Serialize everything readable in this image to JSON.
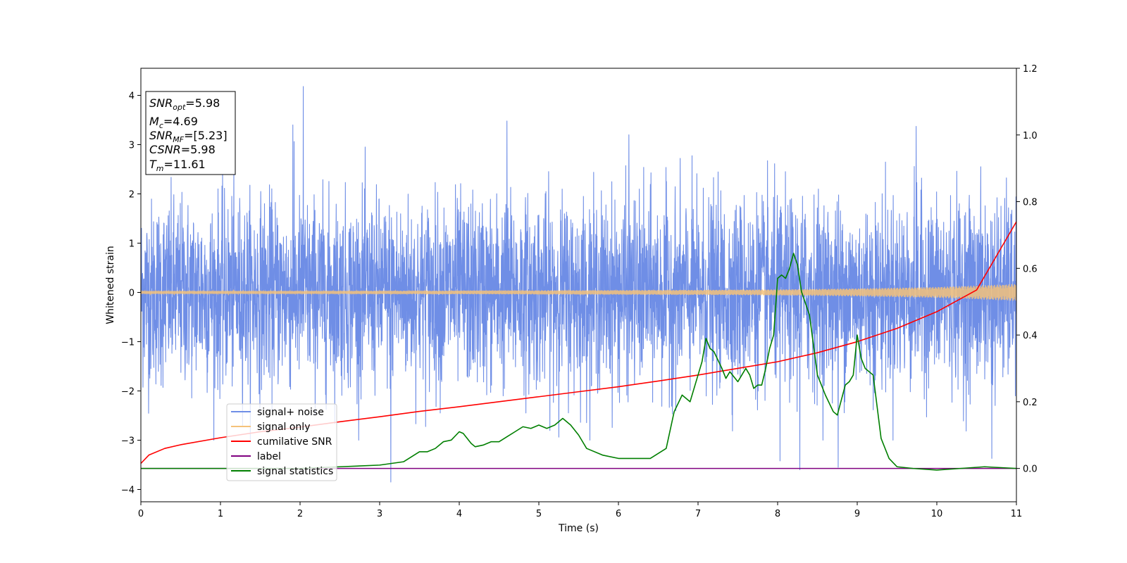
{
  "chart_data": {
    "type": "line",
    "xlabel": "Time (s)",
    "ylabel": "Whitened strain",
    "xlim": [
      0,
      11
    ],
    "ylim_left": [
      -4.25,
      4.55
    ],
    "ylim_right": [
      -0.1,
      1.2
    ],
    "x_ticks": [
      "0",
      "1",
      "2",
      "3",
      "4",
      "5",
      "6",
      "7",
      "8",
      "9",
      "10",
      "11"
    ],
    "y_ticks_left": [
      "−4",
      "−3",
      "−2",
      "−1",
      "0",
      "1",
      "2",
      "3",
      "4"
    ],
    "y_ticks_right": [
      "0.0",
      "0.2",
      "0.4",
      "0.6",
      "0.8",
      "1.0",
      "1.2"
    ],
    "grid": false,
    "legend_position": "lower-left",
    "legend": [
      {
        "label": "signal+ noise",
        "color": "#6f8ee6"
      },
      {
        "label": "signal only",
        "color": "#f5c27a"
      },
      {
        "label": "cumilative SNR",
        "color": "#ff0000"
      },
      {
        "label": "label",
        "color": "#800080"
      },
      {
        "label": "signal statistics",
        "color": "#007f00"
      }
    ],
    "info_box": {
      "position": "top-left",
      "lines": [
        {
          "base": "SNR",
          "sub": "opt",
          "value": "=5.98"
        },
        {
          "base": "M",
          "sub": "c",
          "value": "=4.69"
        },
        {
          "base": "SNR",
          "sub": "MF",
          "value": "=[5.23]"
        },
        {
          "base": "CSNR",
          "sub": "",
          "value": "=5.98"
        },
        {
          "base": "T",
          "sub": "m",
          "value": "=11.61"
        }
      ]
    },
    "series": [
      {
        "name": "signal+ noise",
        "axis": "left",
        "color": "#6f8ee6",
        "style": "dense noise",
        "typical_amplitude": 1.7,
        "extremes": [
          [
            2.04,
            4.18
          ],
          [
            1.91,
            3.4
          ],
          [
            4.6,
            3.48
          ],
          [
            9.74,
            3.37
          ],
          [
            6.13,
            3.2
          ],
          [
            3.14,
            -3.85
          ],
          [
            8.28,
            -3.6
          ],
          [
            8.76,
            -3.55
          ],
          [
            8.03,
            -3.42
          ],
          [
            10.69,
            -3.37
          ]
        ]
      },
      {
        "name": "signal only",
        "axis": "left",
        "color": "#f5c27a",
        "style": "chirp envelope",
        "envelope": [
          [
            0,
            0.03
          ],
          [
            2,
            0.03
          ],
          [
            4,
            0.035
          ],
          [
            6,
            0.045
          ],
          [
            7,
            0.05
          ],
          [
            8,
            0.06
          ],
          [
            9,
            0.08
          ],
          [
            10,
            0.11
          ],
          [
            11,
            0.17
          ]
        ]
      },
      {
        "name": "cumilative SNR",
        "axis": "right",
        "color": "#ff0000",
        "x": [
          0,
          0.1,
          0.3,
          0.5,
          1,
          1.5,
          2,
          2.5,
          3,
          3.5,
          4,
          4.5,
          5,
          5.5,
          6,
          6.5,
          7,
          7.5,
          8,
          8.5,
          9,
          9.5,
          10,
          10.5,
          11
        ],
        "y": [
          0.015,
          0.04,
          0.06,
          0.071,
          0.092,
          0.11,
          0.124,
          0.14,
          0.155,
          0.171,
          0.185,
          0.2,
          0.215,
          0.23,
          0.245,
          0.262,
          0.28,
          0.3,
          0.32,
          0.347,
          0.38,
          0.42,
          0.47,
          0.535,
          0.74
        ]
      },
      {
        "name": "label",
        "axis": "right",
        "color": "#800080",
        "x": [
          0,
          11
        ],
        "y": [
          0,
          0
        ]
      },
      {
        "name": "signal statistics",
        "axis": "right",
        "color": "#007f00",
        "x": [
          0,
          1,
          2,
          2.5,
          3,
          3.15,
          3.3,
          3.4,
          3.5,
          3.6,
          3.7,
          3.8,
          3.9,
          4.0,
          4.05,
          4.15,
          4.2,
          4.3,
          4.4,
          4.5,
          4.6,
          4.7,
          4.8,
          4.9,
          5.0,
          5.1,
          5.2,
          5.3,
          5.4,
          5.5,
          5.6,
          5.8,
          6.0,
          6.2,
          6.4,
          6.6,
          6.7,
          6.8,
          6.9,
          7.0,
          7.05,
          7.1,
          7.15,
          7.2,
          7.3,
          7.35,
          7.4,
          7.5,
          7.6,
          7.65,
          7.7,
          7.75,
          7.8,
          7.85,
          7.9,
          7.95,
          8.0,
          8.05,
          8.1,
          8.15,
          8.2,
          8.25,
          8.3,
          8.4,
          8.5,
          8.6,
          8.7,
          8.75,
          8.85,
          8.9,
          8.95,
          9.0,
          9.05,
          9.1,
          9.2,
          9.3,
          9.4,
          9.5,
          9.7,
          10.0,
          10.3,
          10.6,
          11.0
        ],
        "y": [
          0.0,
          0.0,
          0.0,
          0.005,
          0.01,
          0.015,
          0.02,
          0.035,
          0.05,
          0.05,
          0.06,
          0.08,
          0.085,
          0.11,
          0.105,
          0.075,
          0.065,
          0.07,
          0.08,
          0.08,
          0.095,
          0.11,
          0.125,
          0.12,
          0.13,
          0.12,
          0.13,
          0.15,
          0.13,
          0.1,
          0.06,
          0.04,
          0.03,
          0.03,
          0.03,
          0.06,
          0.17,
          0.22,
          0.2,
          0.28,
          0.32,
          0.39,
          0.36,
          0.35,
          0.3,
          0.27,
          0.29,
          0.26,
          0.3,
          0.28,
          0.24,
          0.25,
          0.25,
          0.3,
          0.36,
          0.4,
          0.57,
          0.58,
          0.57,
          0.6,
          0.645,
          0.61,
          0.53,
          0.46,
          0.28,
          0.22,
          0.17,
          0.16,
          0.25,
          0.26,
          0.28,
          0.4,
          0.33,
          0.3,
          0.28,
          0.09,
          0.03,
          0.005,
          0.0,
          -0.005,
          0.0,
          0.005,
          0.0
        ]
      }
    ]
  }
}
